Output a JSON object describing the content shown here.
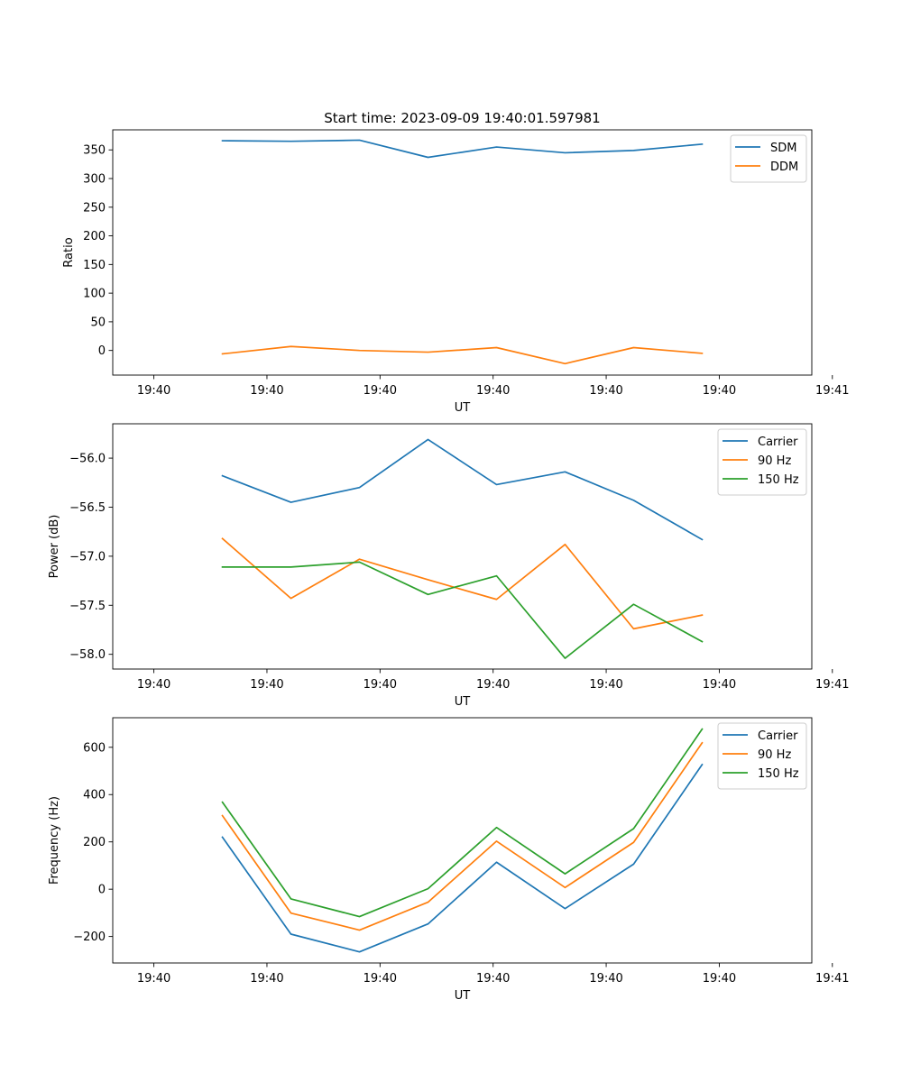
{
  "figure_title": "Start time: 2023-09-09 19:40:01.597981",
  "colors": {
    "blue": "#1f77b4",
    "orange": "#ff7f0e",
    "green": "#2ca02c"
  },
  "chart_data": [
    {
      "type": "line",
      "title": "Start time: 2023-09-09 19:40:01.597981",
      "xlabel": "UT",
      "ylabel": "Ratio",
      "xlim": [
        -0.6,
        9.6
      ],
      "ylim": [
        -43,
        385
      ],
      "x": [
        1,
        2,
        3,
        4,
        5,
        6,
        7,
        8
      ],
      "xticks": [
        0,
        1.65,
        3.3,
        4.95,
        6.6,
        8.25,
        9.9
      ],
      "xtick_labels": [
        "19:40",
        "19:40",
        "19:40",
        "19:40",
        "19:40",
        "19:40",
        "19:41"
      ],
      "yticks": [
        0,
        50,
        100,
        150,
        200,
        250,
        300,
        350
      ],
      "ytick_labels": [
        "0",
        "50",
        "100",
        "150",
        "200",
        "250",
        "300",
        "350"
      ],
      "legend_position": "top-right",
      "series": [
        {
          "name": "SDM",
          "color": "#1f77b4",
          "values": [
            366,
            365,
            367,
            337,
            355,
            345,
            349,
            360
          ]
        },
        {
          "name": "DDM",
          "color": "#ff7f0e",
          "values": [
            -6,
            7,
            0,
            -3,
            5,
            -23,
            5,
            -5
          ]
        }
      ]
    },
    {
      "type": "line",
      "title": "",
      "xlabel": "UT",
      "ylabel": "Power (dB)",
      "xlim": [
        -0.6,
        9.6
      ],
      "ylim": [
        -58.15,
        -55.65
      ],
      "x": [
        1,
        2,
        3,
        4,
        5,
        6,
        7,
        8
      ],
      "xticks": [
        0,
        1.65,
        3.3,
        4.95,
        6.6,
        8.25,
        9.9
      ],
      "xtick_labels": [
        "19:40",
        "19:40",
        "19:40",
        "19:40",
        "19:40",
        "19:40",
        "19:41"
      ],
      "yticks": [
        -58.0,
        -57.5,
        -57.0,
        -56.5,
        -56.0
      ],
      "ytick_labels": [
        "−58.0",
        "−57.5",
        "−57.0",
        "−56.5",
        "−56.0"
      ],
      "legend_position": "top-right",
      "series": [
        {
          "name": "Carrier",
          "color": "#1f77b4",
          "values": [
            -56.18,
            -56.45,
            -56.3,
            -55.81,
            -56.27,
            -56.14,
            -56.43,
            -56.83
          ]
        },
        {
          "name": "90 Hz",
          "color": "#ff7f0e",
          "values": [
            -56.82,
            -57.43,
            -57.03,
            -57.24,
            -57.44,
            -56.88,
            -57.74,
            -57.6
          ]
        },
        {
          "name": "150 Hz",
          "color": "#2ca02c",
          "values": [
            -57.11,
            -57.11,
            -57.06,
            -57.39,
            -57.2,
            -58.04,
            -57.49,
            -57.87
          ]
        }
      ]
    },
    {
      "type": "line",
      "title": "",
      "xlabel": "UT",
      "ylabel": "Frequency (Hz)",
      "xlim": [
        -0.6,
        9.6
      ],
      "ylim": [
        -312,
        725
      ],
      "x": [
        1,
        2,
        3,
        4,
        5,
        6,
        7,
        8
      ],
      "xticks": [
        0,
        1.65,
        3.3,
        4.95,
        6.6,
        8.25,
        9.9
      ],
      "xtick_labels": [
        "19:40",
        "19:40",
        "19:40",
        "19:40",
        "19:40",
        "19:40",
        "19:41"
      ],
      "yticks": [
        -200,
        0,
        200,
        400,
        600
      ],
      "ytick_labels": [
        "−200",
        "0",
        "200",
        "400",
        "600"
      ],
      "legend_position": "top-right",
      "series": [
        {
          "name": "Carrier",
          "color": "#1f77b4",
          "values": [
            220,
            -190,
            -265,
            -147,
            114,
            -82,
            106,
            527
          ]
        },
        {
          "name": "90 Hz",
          "color": "#ff7f0e",
          "values": [
            311,
            -101,
            -173,
            -55,
            203,
            7,
            198,
            619
          ]
        },
        {
          "name": "150 Hz",
          "color": "#2ca02c",
          "values": [
            368,
            -41,
            -116,
            2,
            261,
            65,
            256,
            677
          ]
        }
      ]
    }
  ]
}
